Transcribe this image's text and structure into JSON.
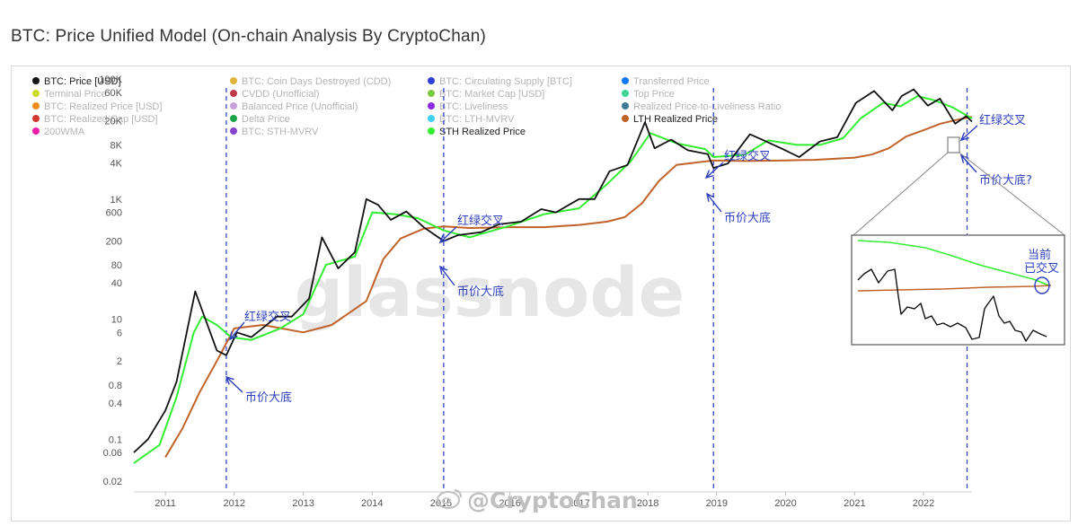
{
  "title": "BTC: Price Unified Model (On-chain Analysis By CryptoChan)",
  "legend": [
    {
      "label": "BTC: Price [USD]",
      "color": "#111111",
      "active": true
    },
    {
      "label": "BTC: Coin Days Destroyed (CDD)",
      "color": "#e0b43a",
      "active": false
    },
    {
      "label": "BTC: Circulating Supply [BTC]",
      "color": "#2d3fd8",
      "active": false
    },
    {
      "label": "Transferred Price",
      "color": "#1677ff",
      "active": false
    },
    {
      "label": "Terminal Price",
      "color": "#c6dd2e",
      "active": false
    },
    {
      "label": "CVDD (Unofficial)",
      "color": "#c0394a",
      "active": false
    },
    {
      "label": "BTC: Market Cap [USD]",
      "color": "#7ac943",
      "active": false
    },
    {
      "label": "Top Price",
      "color": "#3fd49a",
      "active": false
    },
    {
      "label": "BTC: Realized Price [USD]",
      "color": "#f08c1f",
      "active": false
    },
    {
      "label": "Balanced Price (Unofficial)",
      "color": "#c8a0d8",
      "active": false
    },
    {
      "label": "BTC: Liveliness",
      "color": "#8a2be2",
      "active": false
    },
    {
      "label": "Realized Price-to-Liveliness Ratio",
      "color": "#3d7a9a",
      "active": false
    },
    {
      "label": "BTC: Realized Cap [USD]",
      "color": "#d0392b",
      "active": false
    },
    {
      "label": "Delta Price",
      "color": "#1aa34a",
      "active": false
    },
    {
      "label": "BTC: LTH-MVRV",
      "color": "#41d1f0",
      "active": false
    },
    {
      "label": "LTH Realized Price",
      "color": "#c0622a",
      "active": true
    },
    {
      "label": "200WMA",
      "color": "#f020a8",
      "active": false
    },
    {
      "label": "BTC: STH-MVRV",
      "color": "#8844cc",
      "active": false
    },
    {
      "label": "STH Realized Price",
      "color": "#33ee33",
      "active": true
    }
  ],
  "annotations": {
    "cross_label": "红绿交叉",
    "bottom_label": "币价大底",
    "bottom_question": "币价大底?",
    "inset_note_line1": "当前",
    "inset_note_line2": "已交叉"
  },
  "watermark": "glassnode",
  "credit": "@CryptoChan",
  "chart_data": {
    "type": "line",
    "title": "BTC: Price Unified Model (On-chain Analysis By CryptoChan)",
    "y_scale": "log",
    "ylim": [
      0.02,
      150000
    ],
    "y_ticks": [
      "100K",
      "60K",
      "20K",
      "8K",
      "4K",
      "1K",
      "600",
      "200",
      "80",
      "40",
      "10",
      "6",
      "2",
      "0.8",
      "0.4",
      "0.1",
      "0.06",
      "0.02"
    ],
    "x_ticks": [
      "2011",
      "2012",
      "2013",
      "2014",
      "2015",
      "2016",
      "2017",
      "2018",
      "2019",
      "2020",
      "2021",
      "2022"
    ],
    "xlim": [
      "2010-07-18",
      "2022-09-15"
    ],
    "vertical_markers": [
      "2011-11-20",
      "2015-01-15",
      "2018-12-15",
      "2022-08-20"
    ],
    "series": [
      {
        "name": "BTC: Price [USD]",
        "color": "#111111",
        "x": [
          "2010-07-18",
          "2010-10-01",
          "2011-01-01",
          "2011-03-01",
          "2011-06-08",
          "2011-08-01",
          "2011-10-01",
          "2011-11-20",
          "2012-01-15",
          "2012-04-01",
          "2012-08-15",
          "2012-11-01",
          "2013-02-01",
          "2013-04-10",
          "2013-07-05",
          "2013-10-01",
          "2013-12-01",
          "2014-02-01",
          "2014-04-10",
          "2014-07-01",
          "2014-10-01",
          "2015-01-15",
          "2015-04-01",
          "2015-08-01",
          "2015-11-04",
          "2016-03-01",
          "2016-06-15",
          "2016-09-01",
          "2017-01-01",
          "2017-03-25",
          "2017-06-12",
          "2017-09-15",
          "2017-12-17",
          "2018-02-06",
          "2018-05-05",
          "2018-08-01",
          "2018-11-15",
          "2018-12-15",
          "2019-03-01",
          "2019-06-26",
          "2019-09-01",
          "2019-12-17",
          "2020-03-13",
          "2020-07-01",
          "2020-10-01",
          "2021-01-08",
          "2021-04-14",
          "2021-07-20",
          "2021-09-07",
          "2021-11-10",
          "2022-01-24",
          "2022-03-29",
          "2022-06-18",
          "2022-08-15",
          "2022-09-15"
        ],
        "y": [
          0.06,
          0.1,
          0.3,
          0.9,
          29,
          10,
          3,
          2.5,
          6,
          5,
          11,
          11,
          22,
          230,
          70,
          130,
          1000,
          800,
          450,
          620,
          340,
          200,
          250,
          280,
          380,
          420,
          680,
          600,
          1000,
          1000,
          2900,
          3700,
          19000,
          7000,
          9800,
          6500,
          5600,
          3300,
          3900,
          12000,
          9700,
          6800,
          5000,
          9100,
          10700,
          40000,
          63000,
          30000,
          52000,
          67000,
          36000,
          47000,
          18000,
          24000,
          19500
        ]
      },
      {
        "name": "STH Realized Price",
        "color": "#33ee33",
        "x": [
          "2010-07-18",
          "2010-12-01",
          "2011-03-01",
          "2011-06-01",
          "2011-07-15",
          "2011-10-01",
          "2011-12-15",
          "2012-04-01",
          "2012-09-01",
          "2013-01-01",
          "2013-05-01",
          "2013-10-01",
          "2014-01-01",
          "2014-05-01",
          "2014-09-01",
          "2015-01-15",
          "2015-06-01",
          "2016-01-01",
          "2016-07-01",
          "2017-01-01",
          "2017-06-01",
          "2017-10-01",
          "2018-01-15",
          "2018-06-01",
          "2018-11-01",
          "2018-12-15",
          "2019-06-01",
          "2019-10-01",
          "2020-03-01",
          "2020-07-01",
          "2020-11-01",
          "2021-02-01",
          "2021-06-01",
          "2021-09-01",
          "2021-12-01",
          "2022-03-01",
          "2022-06-01",
          "2022-09-15"
        ],
        "y": [
          0.04,
          0.08,
          0.5,
          6,
          11,
          8,
          5,
          4.5,
          7,
          12,
          80,
          110,
          600,
          560,
          480,
          300,
          230,
          360,
          560,
          700,
          1800,
          4200,
          12500,
          8500,
          6800,
          5000,
          5500,
          9500,
          8000,
          8000,
          10300,
          22000,
          40000,
          35000,
          52000,
          44000,
          34000,
          22000
        ]
      },
      {
        "name": "LTH Realized Price",
        "color": "#c0622a",
        "x": [
          "2011-01-01",
          "2011-04-01",
          "2011-07-01",
          "2011-10-01",
          "2012-01-01",
          "2012-06-01",
          "2013-01-01",
          "2013-06-01",
          "2013-12-01",
          "2014-03-01",
          "2014-06-01",
          "2014-10-01",
          "2015-01-15",
          "2015-06-01",
          "2016-01-01",
          "2016-07-01",
          "2017-01-01",
          "2017-06-01",
          "2017-09-01",
          "2017-12-01",
          "2018-03-01",
          "2018-06-01",
          "2018-12-15",
          "2019-06-01",
          "2020-01-01",
          "2020-06-01",
          "2021-01-01",
          "2021-04-01",
          "2021-07-01",
          "2021-10-01",
          "2022-01-01",
          "2022-04-01",
          "2022-07-01",
          "2022-09-15"
        ],
        "y": [
          0.05,
          0.15,
          0.6,
          2,
          7,
          8,
          6,
          8,
          20,
          100,
          220,
          320,
          350,
          330,
          340,
          340,
          370,
          420,
          500,
          850,
          2000,
          3700,
          4400,
          4300,
          4400,
          4500,
          4900,
          5500,
          7000,
          11000,
          14000,
          18000,
          21000,
          23500
        ]
      }
    ]
  }
}
